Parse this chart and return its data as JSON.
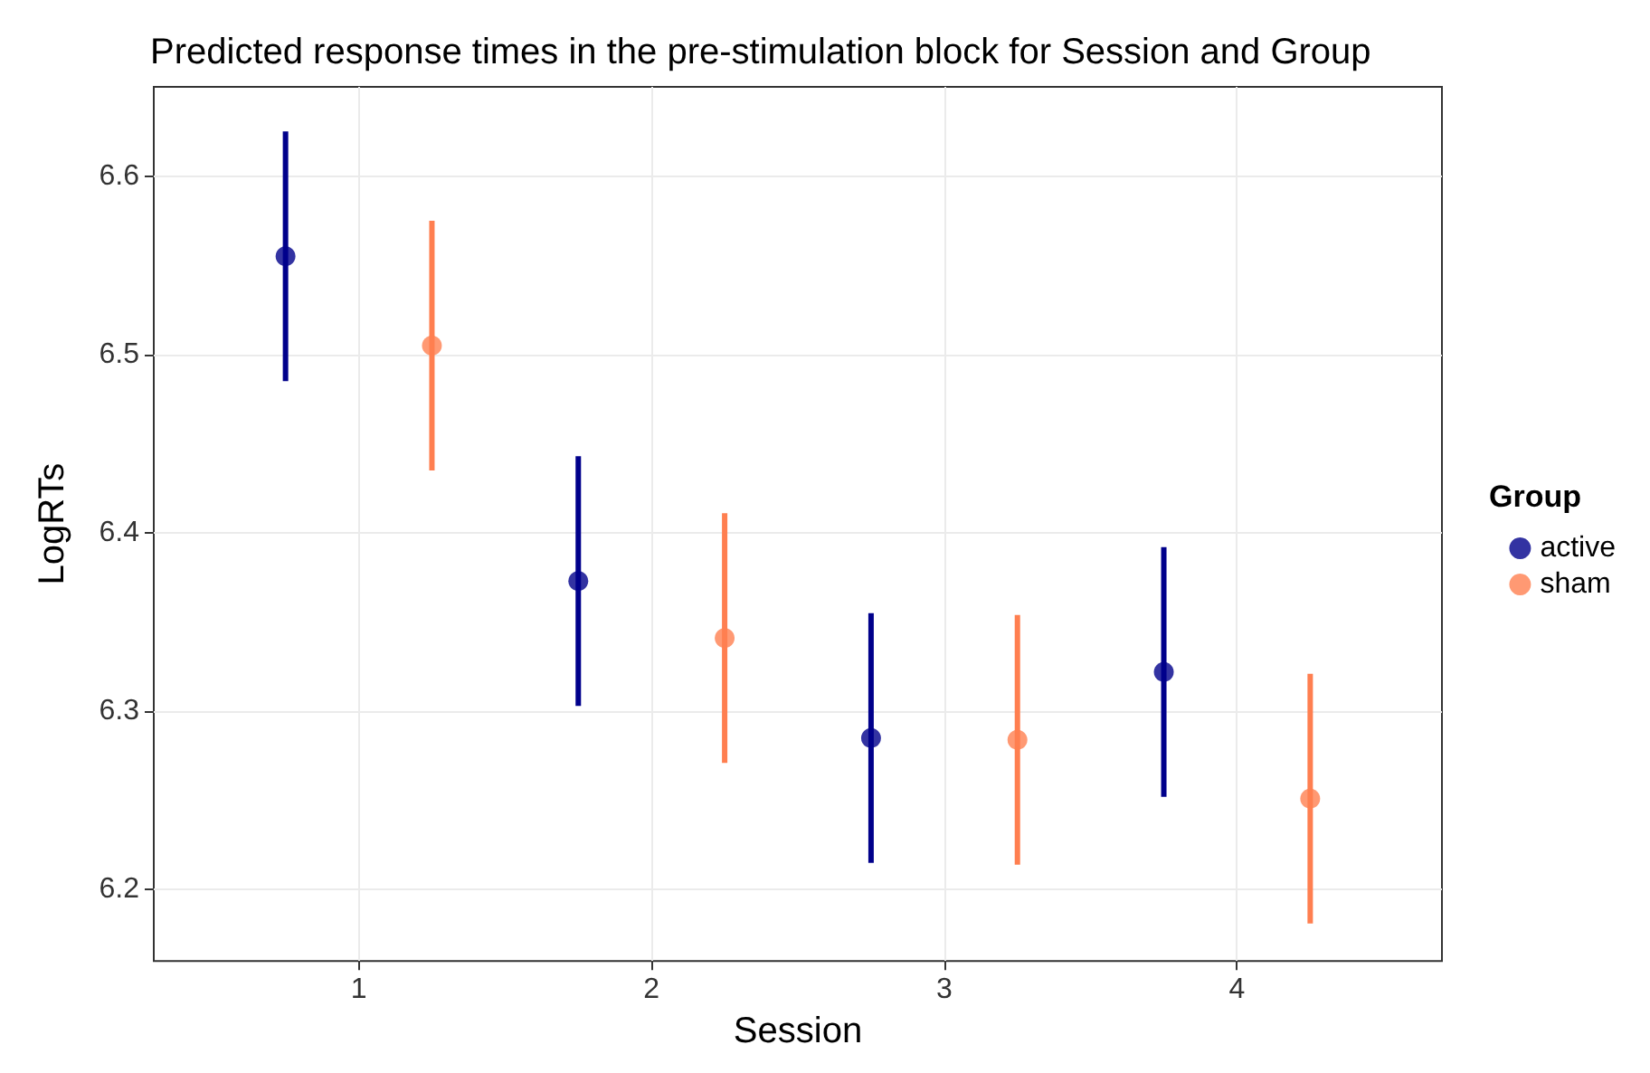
{
  "chart_data": {
    "type": "scatter",
    "title": "Predicted response times in the pre-stimulation block for Session and Group",
    "xlabel": "Session",
    "ylabel": "LogRTs",
    "legend_title": "Group",
    "legend": "right",
    "grid": true,
    "marker": "circle",
    "xlim": [
      0.3,
      4.7
    ],
    "xticks": [
      1,
      2,
      3,
      4
    ],
    "ylim": [
      6.16,
      6.65
    ],
    "yticks": [
      6.2,
      6.3,
      6.4,
      6.5,
      6.6
    ],
    "series": [
      {
        "name": "active",
        "color": "#00008b",
        "x": [
          0.75,
          1.75,
          2.75,
          3.75
        ],
        "values": [
          6.555,
          6.373,
          6.285,
          6.322
        ],
        "errors": [
          [
            6.485,
            6.625
          ],
          [
            6.303,
            6.443
          ],
          [
            6.215,
            6.355
          ],
          [
            6.252,
            6.392
          ]
        ]
      },
      {
        "name": "sham",
        "color": "#ff7f50",
        "x": [
          1.25,
          2.25,
          3.25,
          4.25
        ],
        "values": [
          6.505,
          6.341,
          6.284,
          6.251
        ],
        "errors": [
          [
            6.435,
            6.575
          ],
          [
            6.271,
            6.411
          ],
          [
            6.214,
            6.354
          ],
          [
            6.181,
            6.321
          ]
        ]
      }
    ]
  }
}
